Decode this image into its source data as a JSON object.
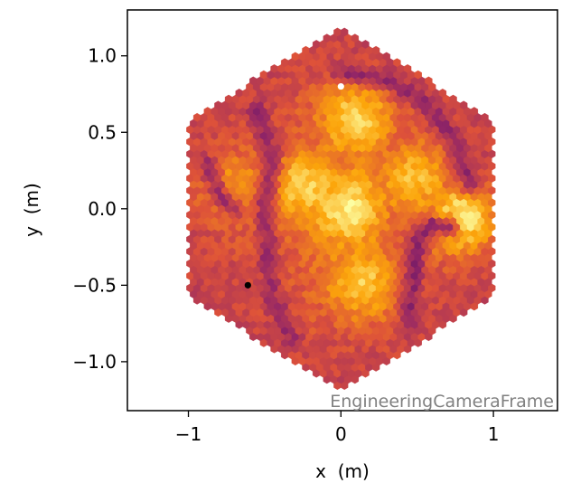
{
  "chart_data": {
    "type": "scatter",
    "subtype": "hexagonal-pixel camera image",
    "title": "",
    "xlabel": "x  (m)",
    "ylabel": "y  (m)",
    "xlim": [
      -1.4,
      1.42
    ],
    "ylim": [
      -1.32,
      1.3
    ],
    "xticks": [
      -1,
      0,
      1
    ],
    "xtick_labels": [
      "−1",
      "0",
      "1"
    ],
    "yticks": [
      -1.0,
      -0.5,
      0.0,
      0.5,
      1.0
    ],
    "ytick_labels": [
      "−1.0",
      "−0.5",
      "0.0",
      "0.5",
      "1.0"
    ],
    "grid": false,
    "legend": "none",
    "annotation": "EngineeringCameraFrame",
    "colormap": "inferno",
    "colormap_stops": [
      "#000004",
      "#420a68",
      "#932667",
      "#dd513a",
      "#fca50a",
      "#fcffa4"
    ],
    "camera_outline": {
      "shape": "hexagon",
      "vertices": [
        [
          0,
          1.18
        ],
        [
          0.99,
          0.59
        ],
        [
          0.99,
          -0.59
        ],
        [
          0,
          -1.18
        ],
        [
          -0.99,
          -0.59
        ],
        [
          -0.99,
          0.59
        ]
      ]
    },
    "bright_regions": [
      {
        "x": 0.1,
        "y": 0.6,
        "level": 0.86
      },
      {
        "x": 0.05,
        "y": 0.0,
        "level": 0.84
      },
      {
        "x": -0.25,
        "y": 0.15,
        "level": 0.8
      },
      {
        "x": 0.15,
        "y": -0.5,
        "level": 0.82
      },
      {
        "x": 0.5,
        "y": 0.2,
        "level": 0.82
      },
      {
        "x": 0.8,
        "y": -0.06,
        "level": 0.96
      },
      {
        "x": -0.72,
        "y": 0.15,
        "level": 0.76
      }
    ],
    "dark_arcs": [
      {
        "points": [
          [
            -0.55,
            0.65
          ],
          [
            -0.45,
            0.35
          ],
          [
            -0.5,
            0.05
          ],
          [
            -0.48,
            -0.25
          ],
          [
            -0.46,
            -0.55
          ],
          [
            -0.32,
            -0.85
          ]
        ],
        "level": 0.42
      },
      {
        "points": [
          [
            0.0,
            0.9
          ],
          [
            0.3,
            0.85
          ],
          [
            0.55,
            0.7
          ],
          [
            0.75,
            0.45
          ],
          [
            0.85,
            0.15
          ]
        ],
        "level": 0.42
      },
      {
        "points": [
          [
            0.72,
            -0.12
          ],
          [
            0.6,
            -0.1
          ],
          [
            0.5,
            -0.2
          ],
          [
            0.48,
            -0.45
          ],
          [
            0.45,
            -0.75
          ]
        ],
        "level": 0.4
      },
      {
        "points": [
          [
            -0.88,
            0.3
          ],
          [
            -0.8,
            0.1
          ],
          [
            -0.7,
            0.0
          ]
        ],
        "level": 0.45
      }
    ],
    "special_pixels": [
      {
        "x": 0.0,
        "y": 0.8,
        "color": "#ffffff"
      },
      {
        "x": -0.61,
        "y": -0.5,
        "color": "#000000"
      }
    ]
  }
}
